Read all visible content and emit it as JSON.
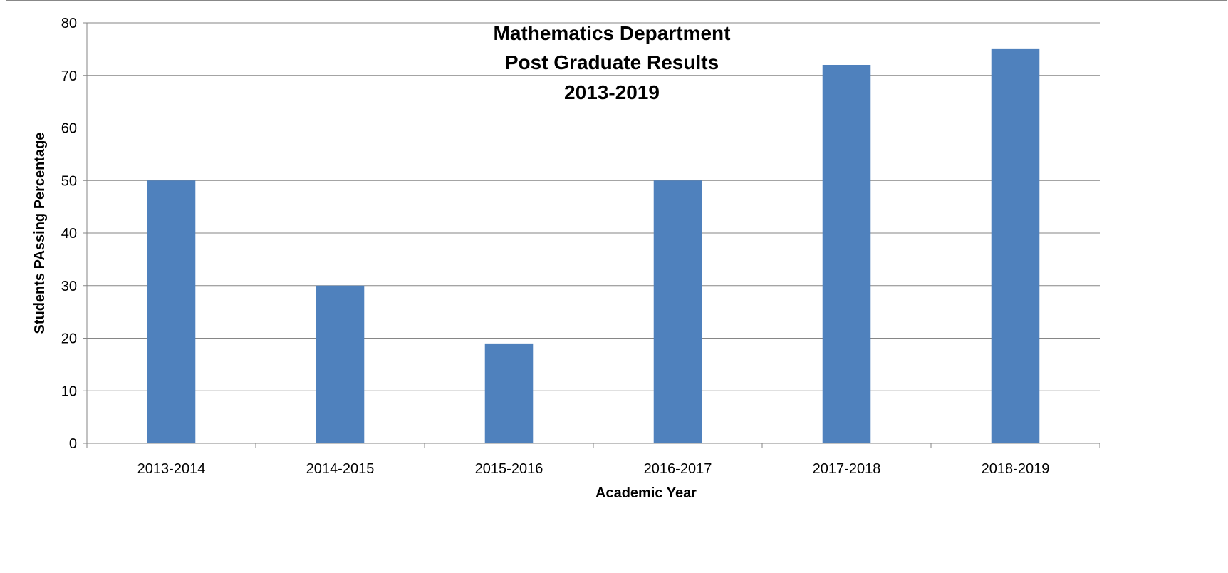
{
  "chart_data": {
    "type": "bar",
    "title_lines": [
      "Mathematics Department",
      "Post Graduate Results",
      "2013-2019"
    ],
    "xlabel": "Academic Year",
    "ylabel": "Students PAssing Percentage",
    "categories": [
      "2013-2014",
      "2014-2015",
      "2015-2016",
      "2016-2017",
      "2017-2018",
      "2018-2019"
    ],
    "values": [
      50,
      30,
      19,
      50,
      72,
      75
    ],
    "ylim": [
      0,
      80
    ],
    "yticks": [
      0,
      10,
      20,
      30,
      40,
      50,
      60,
      70,
      80
    ],
    "grid": true,
    "legend": "none",
    "bar_color": "#4F81BD"
  }
}
